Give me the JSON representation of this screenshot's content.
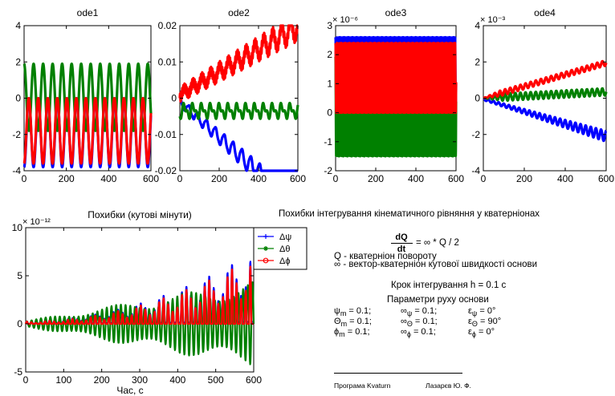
{
  "chart_data": [
    {
      "type": "line",
      "title": "ode1",
      "xlabel": "",
      "ylabel": "",
      "xlim": [
        0,
        600
      ],
      "ylim": [
        -4,
        4
      ],
      "xticks": [
        0,
        200,
        400,
        600
      ],
      "yticks": [
        -4,
        -2,
        0,
        2,
        4
      ],
      "exponent": "",
      "series": [
        {
          "color": "#0000ff",
          "description": "oscillation between -3.8 and 0 with period ~45",
          "min": -3.8,
          "max": 0
        },
        {
          "color": "#008000",
          "description": "oscillation between -1.8 and 1.9 with period ~45",
          "min": -1.8,
          "max": 1.9
        },
        {
          "color": "#ff0000",
          "description": "oscillation between -3.6 and 0 with period ~45",
          "min": -3.6,
          "max": 0
        }
      ]
    },
    {
      "type": "line",
      "title": "ode2",
      "xlabel": "",
      "ylabel": "",
      "xlim": [
        0,
        600
      ],
      "ylim": [
        -0.02,
        0.02
      ],
      "xticks": [
        0,
        200,
        400,
        600
      ],
      "yticks": [
        -0.02,
        -0.01,
        0,
        0.01,
        0.02
      ],
      "exponent": "",
      "series": [
        {
          "color": "#0000ff",
          "description": "downward trend with oscillation",
          "start": 0,
          "end": -0.016
        },
        {
          "color": "#008000",
          "description": "small oscillation around -0.004",
          "start": -0.002,
          "end": -0.005
        },
        {
          "color": "#ff0000",
          "description": "upward trend with oscillation",
          "start": 0,
          "end": 0.018
        }
      ]
    },
    {
      "type": "line",
      "title": "ode3",
      "xlabel": "",
      "ylabel": "",
      "xlim": [
        0,
        600
      ],
      "ylim": [
        -2,
        3
      ],
      "xticks": [
        0,
        200,
        400,
        600
      ],
      "yticks": [
        -2,
        -1,
        0,
        1,
        2,
        3
      ],
      "exponent": "× 10⁻⁶",
      "series": [
        {
          "color": "#0000ff",
          "description": "fast oscillation between 0 and 2.6",
          "min": 0,
          "max": 2.6
        },
        {
          "color": "#008000",
          "description": "fast oscillation between -1.5 and 2.0",
          "min": -1.5,
          "max": 2.0
        },
        {
          "color": "#ff0000",
          "description": "fast oscillation between 0 and 2.4",
          "min": 0,
          "max": 2.4
        }
      ]
    },
    {
      "type": "line",
      "title": "ode4",
      "xlabel": "",
      "ylabel": "",
      "xlim": [
        0,
        600
      ],
      "ylim": [
        -4,
        4
      ],
      "xticks": [
        0,
        200,
        400,
        600
      ],
      "yticks": [
        -4,
        -2,
        0,
        2,
        4
      ],
      "exponent": "× 10⁻³",
      "series": [
        {
          "color": "#0000ff",
          "description": "downward trend",
          "start": 0,
          "end": -2.0
        },
        {
          "color": "#008000",
          "description": "slight upward trend",
          "start": 0,
          "end": 0.4
        },
        {
          "color": "#ff0000",
          "description": "upward trend",
          "start": 0,
          "end": 2.1
        }
      ]
    },
    {
      "type": "line",
      "title": "Похибки (кутові мінути)",
      "xlabel": "Час, с",
      "ylabel": "",
      "xlim": [
        0,
        600
      ],
      "ylim": [
        -5,
        10
      ],
      "xticks": [
        0,
        100,
        200,
        300,
        400,
        500,
        600
      ],
      "yticks": [
        -5,
        0,
        5,
        10
      ],
      "exponent": "× 10⁻¹²",
      "legend_position": "top-right",
      "series": [
        {
          "name": "Δψ",
          "color": "#0000ff",
          "marker": "+",
          "description": "growing oscillation, envelope up to ~7.5 near 600"
        },
        {
          "name": "Δθ",
          "color": "#008000",
          "marker": "*",
          "description": "growing oscillation, envelope from ~0 to about ±4 near 600"
        },
        {
          "name": "Δϕ",
          "color": "#ff0000",
          "marker": "o",
          "description": "growing oscillation, envelope up to ~7 near 600"
        }
      ]
    }
  ],
  "info": {
    "title": "Похибки інтегрування кінематичного рівняння у кватерніонах",
    "eq_num": "dQ",
    "eq_den": "dt",
    "eq_rhs": "= ∞ * Q / 2",
    "q_def": "Q - кватерніон повороту",
    "w_def": "∞ - вектор-кватерніон кутової швидкості основи",
    "step": "Крок інтегрування h = 0.1 с",
    "params_title": "Параметри руху основи",
    "params": [
      [
        "ψ",
        "m",
        "= 0.1;",
        "∞",
        "ψ",
        "= 0.1;",
        "ε",
        "ψ",
        "= 0°"
      ],
      [
        "Θ",
        "m",
        "= 0.1;",
        "∞",
        "Θ",
        "= 0.1;",
        "ε",
        "Θ",
        "= 90°"
      ],
      [
        "ϕ",
        "m",
        "= 0.1;",
        "∞",
        "ϕ",
        "= 0.1;",
        "ε",
        "ϕ",
        "= 0°"
      ]
    ],
    "footer_left": "Програма Kvaturn",
    "footer_right": "Лазарєв Ю. Ф."
  }
}
